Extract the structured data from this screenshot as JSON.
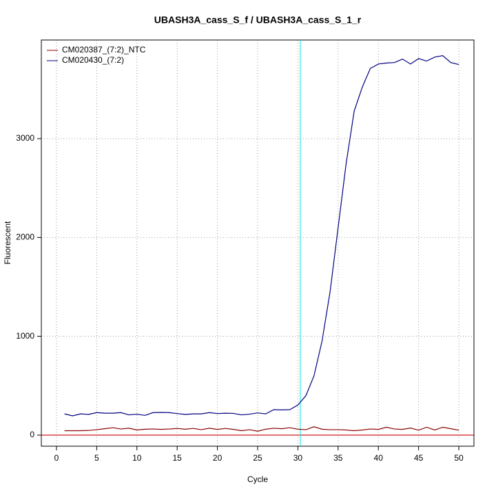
{
  "chart_data": {
    "type": "line",
    "title": "UBASH3A_cass_S_f / UBASH3A_cass_S_1_r",
    "x_label": "Cycle",
    "y_label": "Fluorescent",
    "x": [
      1,
      2,
      3,
      4,
      5,
      6,
      7,
      8,
      9,
      10,
      11,
      12,
      13,
      14,
      15,
      16,
      17,
      18,
      19,
      20,
      21,
      22,
      23,
      24,
      25,
      26,
      27,
      28,
      29,
      30,
      31,
      32,
      33,
      34,
      35,
      36,
      37,
      38,
      39,
      40,
      41,
      42,
      43,
      44,
      45,
      46,
      47,
      48,
      49,
      50
    ],
    "series": [
      {
        "name": "CM020387_(7:2)_NTC",
        "color": "#8b0000",
        "values": [
          45,
          45,
          45,
          48,
          55,
          65,
          75,
          62,
          70,
          52,
          60,
          62,
          58,
          62,
          68,
          60,
          68,
          55,
          70,
          58,
          68,
          58,
          45,
          55,
          40,
          60,
          70,
          65,
          75,
          60,
          55,
          85,
          60,
          55,
          55,
          52,
          45,
          52,
          62,
          58,
          80,
          62,
          58,
          72,
          50,
          80,
          52,
          80,
          65,
          50
        ]
      },
      {
        "name": "CM020430_(7:2)",
        "color": "#00007f",
        "values": [
          215,
          195,
          215,
          210,
          228,
          222,
          222,
          228,
          205,
          212,
          200,
          228,
          230,
          228,
          218,
          210,
          215,
          215,
          228,
          218,
          222,
          220,
          205,
          212,
          225,
          215,
          258,
          255,
          258,
          305,
          400,
          600,
          950,
          1450,
          2100,
          2750,
          3280,
          3520,
          3710,
          3755,
          3765,
          3770,
          3805,
          3755,
          3810,
          3785,
          3825,
          3840,
          3770,
          3750
        ]
      }
    ],
    "xlim": [
      -1.88,
      51.88
    ],
    "ylim": [
      -112,
      3998
    ],
    "xticks": [
      0,
      5,
      10,
      15,
      20,
      25,
      30,
      35,
      40,
      45,
      50
    ],
    "yticks": [
      0,
      1000,
      2000,
      3000
    ],
    "grid": true,
    "legend": "top-left",
    "threshold_x": 30.3,
    "threshold_color": "#00e5ee",
    "baseline_y": 0,
    "baseline_color": "#cc0000"
  }
}
